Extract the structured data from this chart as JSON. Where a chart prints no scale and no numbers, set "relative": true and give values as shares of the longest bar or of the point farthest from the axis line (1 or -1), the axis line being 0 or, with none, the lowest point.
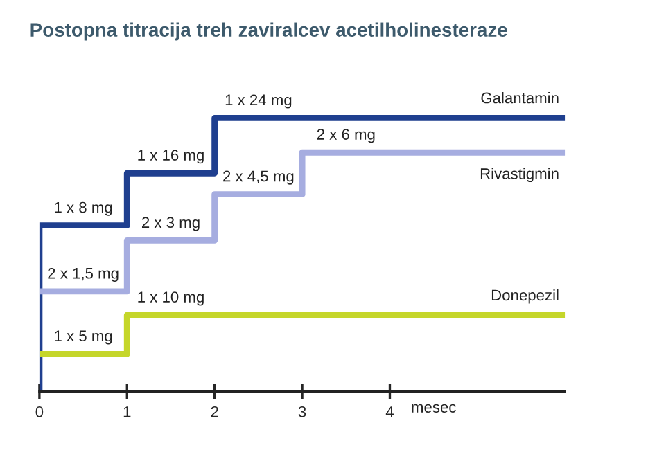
{
  "chart_data": {
    "type": "step",
    "title": "Postopna titracija treh zaviralcev acetilholinesteraze",
    "xlabel": "mesec",
    "relative": true,
    "xlim": [
      0,
      6
    ],
    "xticks": [
      0,
      1,
      2,
      3,
      4
    ],
    "grid": false,
    "legend": false,
    "tick_labels": "x",
    "series": [
      {
        "name": "Galantamin",
        "color": "#1f3f8f",
        "x": [
          0,
          0,
          1,
          2,
          6
        ],
        "values": [
          0,
          0.607,
          0.798,
          1,
          1
        ]
      },
      {
        "name": "Rivastigmin",
        "color": "#a6ade0",
        "x": [
          0,
          1,
          2,
          3,
          6
        ],
        "values": [
          0.366,
          0.552,
          0.721,
          0.874,
          0.874
        ]
      },
      {
        "name": "Donepezil",
        "color": "#c5d62a",
        "x": [
          0,
          1,
          6
        ],
        "values": [
          0.137,
          0.279,
          0.279
        ]
      }
    ],
    "annotations": [
      {
        "text": "1 x 8 mg",
        "x": 0.5,
        "y": 0.607
      },
      {
        "text": "1 x 16 mg",
        "x": 1.5,
        "y": 0.798
      },
      {
        "text": "1 x 24 mg",
        "x": 2.5,
        "y": 1
      },
      {
        "text": "2 x 1,5 mg",
        "x": 0.5,
        "y": 0.366
      },
      {
        "text": "2 x 3 mg",
        "x": 1.5,
        "y": 0.552
      },
      {
        "text": "2 x 4,5 mg",
        "x": 2.5,
        "y": 0.721
      },
      {
        "text": "2 x 6 mg",
        "x": 3.5,
        "y": 0.874
      },
      {
        "text": "1 x 5 mg",
        "x": 0.5,
        "y": 0.137
      },
      {
        "text": "1 x 10 mg",
        "x": 1.5,
        "y": 0.279
      }
    ]
  }
}
